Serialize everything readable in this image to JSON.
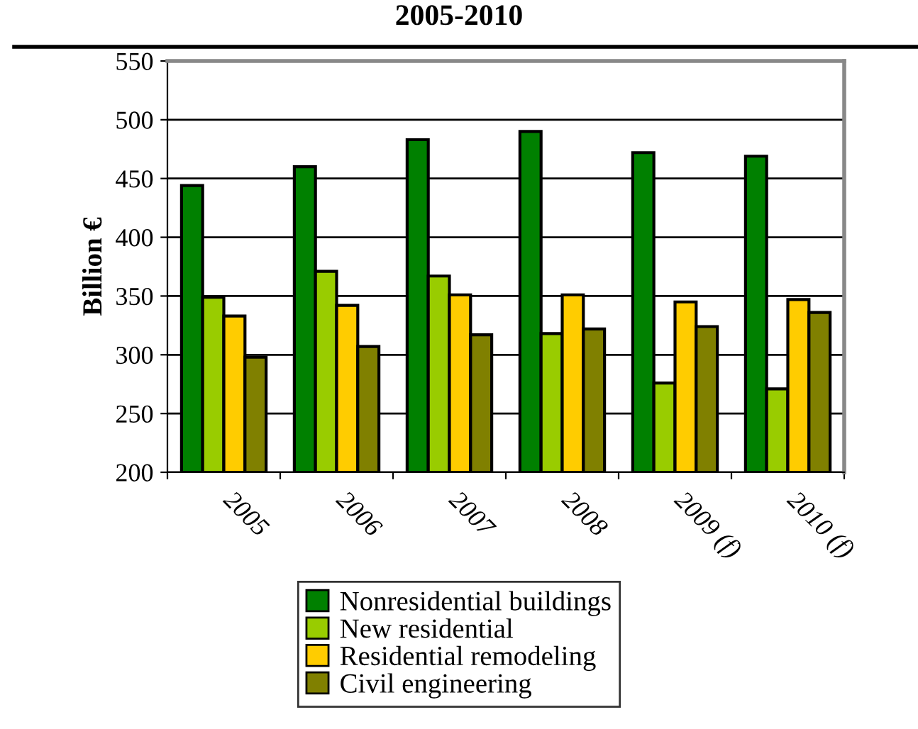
{
  "chart_data": {
    "type": "bar",
    "title": "2005-2010",
    "ylabel": "Billion €",
    "categories": [
      "2005",
      "2006",
      "2007",
      "2008",
      "2009 (f)",
      "2010 (f)"
    ],
    "series": [
      {
        "name": "Nonresidential buildings",
        "color": "#008000",
        "values": [
          444,
          460,
          483,
          490,
          472,
          469
        ]
      },
      {
        "name": "New residential",
        "color": "#99cc00",
        "values": [
          349,
          371,
          367,
          318,
          276,
          271
        ]
      },
      {
        "name": "Residential remodeling",
        "color": "#ffcc00",
        "values": [
          333,
          342,
          351,
          351,
          345,
          347
        ]
      },
      {
        "name": "Civil engineering",
        "color": "#808000",
        "values": [
          298,
          307,
          317,
          322,
          324,
          336
        ]
      }
    ],
    "ylim": [
      200,
      550
    ],
    "yticks": [
      200,
      250,
      300,
      350,
      400,
      450,
      500,
      550
    ],
    "grid": "y",
    "legend": "bottom"
  }
}
